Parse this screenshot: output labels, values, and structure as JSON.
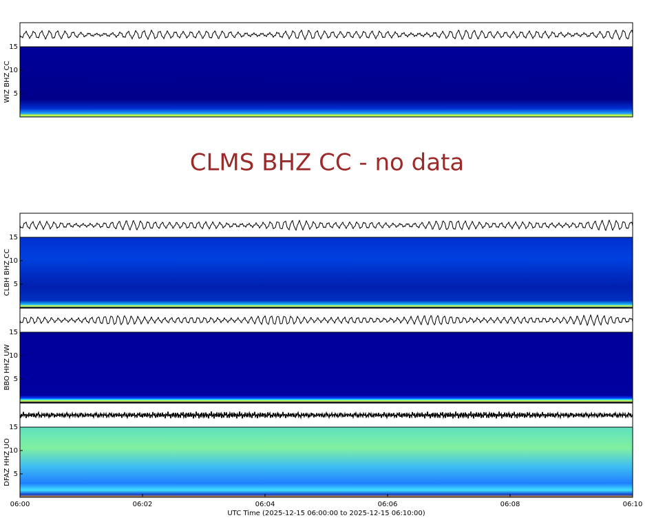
{
  "panels": [
    {
      "label": "WIZ BHZ CC",
      "ylim": [
        0,
        15
      ],
      "yticks": [
        5,
        10,
        15
      ]
    },
    {
      "label": "CLBH BHZ CC",
      "ylim": [
        0,
        15
      ],
      "yticks": [
        5,
        10,
        15
      ]
    },
    {
      "label": "BBO HHZ UW",
      "ylim": [
        0,
        15
      ],
      "yticks": [
        5,
        10,
        15
      ]
    },
    {
      "label": "DFAZ HHZ UO",
      "ylim": [
        0,
        15
      ],
      "yticks": [
        5,
        10,
        15
      ]
    }
  ],
  "no_data": "CLMS BHZ CC - no data",
  "xaxis": {
    "xlim": [
      0,
      10
    ],
    "xticks": [
      {
        "value": 0,
        "label": "06:00"
      },
      {
        "value": 2,
        "label": "06:02"
      },
      {
        "value": 4,
        "label": "06:04"
      },
      {
        "value": 6,
        "label": "06:06"
      },
      {
        "value": 8,
        "label": "06:08"
      },
      {
        "value": 10,
        "label": "06:10"
      }
    ],
    "label": "UTC Time (2025-12-15 06:00:00 to 2025-12-15 06:10:00)"
  }
}
